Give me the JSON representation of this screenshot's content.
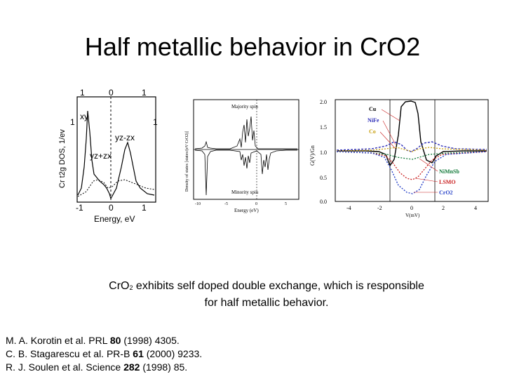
{
  "slide": {
    "title": "Half metallic behavior in CrO2"
  },
  "figures": {
    "left": {
      "top_ticks": [
        "1",
        "0",
        "1"
      ],
      "bottom_ticks": [
        "-1",
        "0",
        "1"
      ],
      "left_tick": "1",
      "right_tick": "1",
      "ylabel": "Cr t2g DOS, 1/ev",
      "xlabel": "Energy, eV",
      "labels": [
        "xy",
        "yz-zx",
        "yz+zx"
      ]
    },
    "middle": {
      "legend_top": "Majority spin",
      "legend_bottom": "Minority spin",
      "ylabel": "Density of states [states/(eV CrO2)]",
      "xlabel": "Energy (eV)",
      "xticks": [
        "-10",
        "-5",
        "0",
        "5"
      ]
    },
    "right": {
      "yticks": [
        "2.0",
        "1.5",
        "1.0",
        "0.5",
        "0.0"
      ],
      "ylabel": "G(V)/Gn",
      "xticks": [
        "-4",
        "-2",
        "0",
        "2",
        "4"
      ],
      "xlabel": "V(mV)",
      "labels_top": [
        "Cu",
        "NiFe",
        "Co"
      ],
      "labels_bottom": [
        "NiMnSb",
        "LSMO",
        "CrO2"
      ],
      "label_colors": {
        "Cu": "#000000",
        "NiFe": "#2d2db8",
        "Co": "#c8a010",
        "NiMnSb": "#137a3a",
        "LSMO": "#c81e1e",
        "CrO2": "#2540c8"
      }
    }
  },
  "caption": {
    "formula_prefix": "CrO",
    "formula_sub": "2",
    "line1_rest": " exhibits self doped double exchange, which is responsible",
    "line2": "for half metallic behavior."
  },
  "references": [
    {
      "pre": "M. A. Korotin et al. PRL ",
      "bold": "80",
      "post": " (1998) 4305."
    },
    {
      "pre": "C. B. Stagarescu et al. PR-B ",
      "bold": "61",
      "post": " (2000) 9233."
    },
    {
      "pre": "R. J. Soulen et al. Science ",
      "bold": "282",
      "post": " (1998) 85."
    }
  ]
}
